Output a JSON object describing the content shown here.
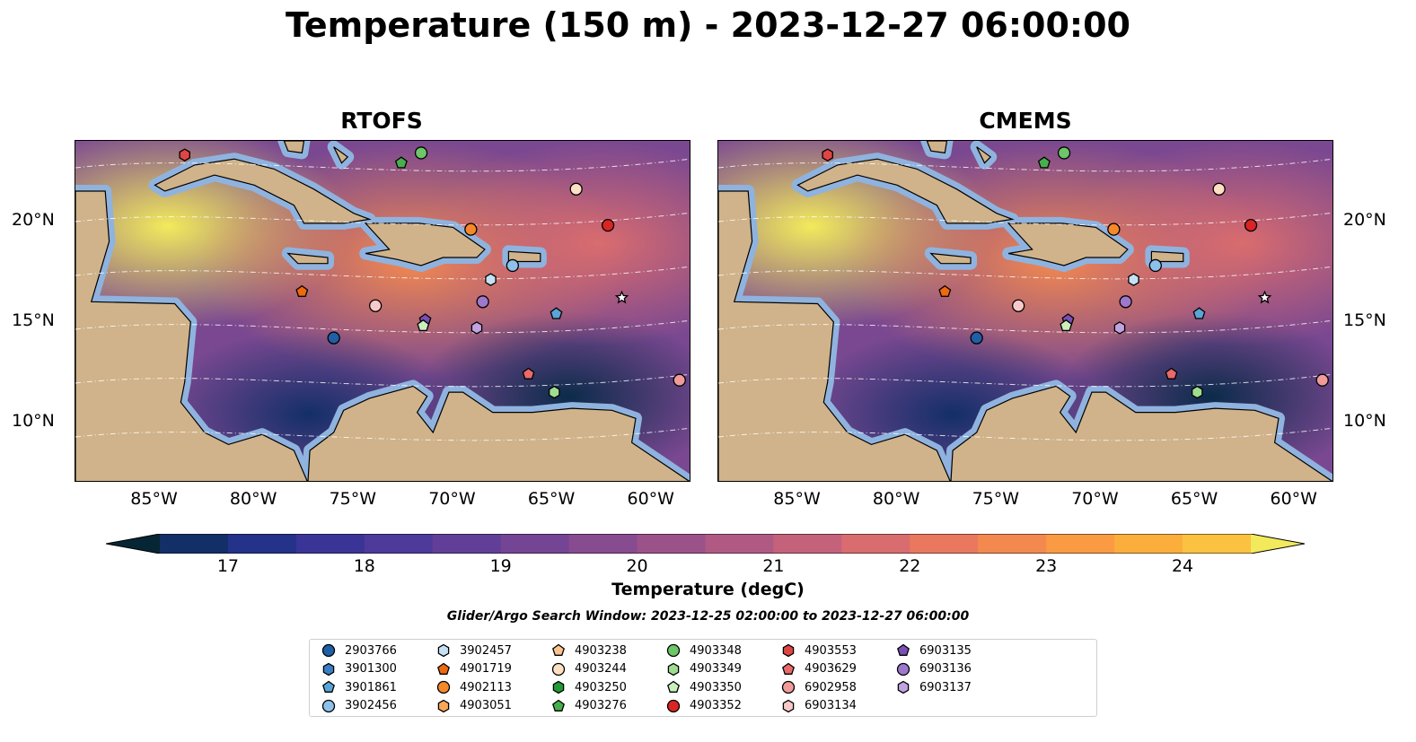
{
  "title": "Temperature (150 m) - 2023-12-27 06:00:00",
  "panels": [
    {
      "title": "RTOFS"
    },
    {
      "title": "CMEMS"
    }
  ],
  "axes": {
    "lon_ticks": [
      "85°W",
      "80°W",
      "75°W",
      "70°W",
      "65°W",
      "60°W"
    ],
    "lat_ticks": [
      "20°N",
      "15°N",
      "10°N"
    ],
    "lon_range": [
      -89,
      -58
    ],
    "lat_range": [
      7,
      24
    ]
  },
  "colorbar": {
    "label": "Temperature (degC)",
    "min": 16.5,
    "max": 24.5,
    "step": 0.5,
    "ticks": [
      "17",
      "18",
      "19",
      "20",
      "21",
      "22",
      "23",
      "24"
    ],
    "tick_values": [
      17,
      18,
      19,
      20,
      21,
      22,
      23,
      24
    ],
    "extend": "both",
    "colors": [
      "#062636",
      "#0b2b4a",
      "#132f68",
      "#24328a",
      "#3b3497",
      "#4e3a9a",
      "#613f99",
      "#744594",
      "#874b8f",
      "#9b5289",
      "#b05a83",
      "#c5627b",
      "#d96c6e",
      "#ea785f",
      "#f4894f",
      "#fa9b43",
      "#fcae3c",
      "#fbc241",
      "#f8d64d",
      "#f2ea5c"
    ]
  },
  "search_window": "Glider/Argo Search Window: 2023-12-25 02:00:00 to 2023-12-27 06:00:00",
  "legend": [
    {
      "id": "2903766",
      "marker": "circle",
      "color": "#1f5fa5"
    },
    {
      "id": "3901300",
      "marker": "hexagon",
      "color": "#3a7fc4"
    },
    {
      "id": "3901861",
      "marker": "pentagon",
      "color": "#5aa5d8"
    },
    {
      "id": "3902456",
      "marker": "circle",
      "color": "#8ec1ea"
    },
    {
      "id": "3902457",
      "marker": "hexagon",
      "color": "#c6e1f5"
    },
    {
      "id": "4901719",
      "marker": "pentagon",
      "color": "#ee6a0e"
    },
    {
      "id": "4902113",
      "marker": "circle",
      "color": "#f5892a"
    },
    {
      "id": "4903051",
      "marker": "hexagon",
      "color": "#f9a85a"
    },
    {
      "id": "4903238",
      "marker": "pentagon",
      "color": "#fbc48f"
    },
    {
      "id": "4903244",
      "marker": "circle",
      "color": "#fde0c4"
    },
    {
      "id": "4903250",
      "marker": "hexagon",
      "color": "#229a36"
    },
    {
      "id": "4903276",
      "marker": "pentagon",
      "color": "#47b04d"
    },
    {
      "id": "4903348",
      "marker": "circle",
      "color": "#6dc668"
    },
    {
      "id": "4903349",
      "marker": "hexagon",
      "color": "#9edd8f"
    },
    {
      "id": "4903350",
      "marker": "pentagon",
      "color": "#c9f0bd"
    },
    {
      "id": "4903352",
      "marker": "circle",
      "color": "#d92523"
    },
    {
      "id": "4903553",
      "marker": "hexagon",
      "color": "#e04545"
    },
    {
      "id": "4903629",
      "marker": "pentagon",
      "color": "#e86a6a"
    },
    {
      "id": "6902958",
      "marker": "circle",
      "color": "#f09a9a"
    },
    {
      "id": "6903134",
      "marker": "hexagon",
      "color": "#f8c9c9"
    },
    {
      "id": "6903135",
      "marker": "pentagon",
      "color": "#7b4fb5"
    },
    {
      "id": "6903136",
      "marker": "circle",
      "color": "#9d78cc"
    },
    {
      "id": "6903137",
      "marker": "hexagon",
      "color": "#c0a3e0"
    }
  ],
  "floats": [
    {
      "lon": -83.5,
      "lat": 23.3,
      "marker": "hexagon",
      "color": "#e04545"
    },
    {
      "lon": -71.6,
      "lat": 23.4,
      "marker": "circle",
      "color": "#6dc668"
    },
    {
      "lon": -72.6,
      "lat": 22.9,
      "marker": "pentagon",
      "color": "#47b04d"
    },
    {
      "lon": -63.8,
      "lat": 21.6,
      "marker": "circle",
      "color": "#fde0c4"
    },
    {
      "lon": -62.2,
      "lat": 19.8,
      "marker": "circle",
      "color": "#d92523"
    },
    {
      "lon": -69.1,
      "lat": 19.6,
      "marker": "circle",
      "color": "#f5892a"
    },
    {
      "lon": -67.0,
      "lat": 17.8,
      "marker": "circle",
      "color": "#8ec1ea"
    },
    {
      "lon": -68.1,
      "lat": 17.1,
      "marker": "hexagon",
      "color": "#c6e1f5"
    },
    {
      "lon": -77.6,
      "lat": 16.5,
      "marker": "pentagon",
      "color": "#ee6a0e"
    },
    {
      "lon": -68.5,
      "lat": 16.0,
      "marker": "circle",
      "color": "#9d78cc"
    },
    {
      "lon": -73.9,
      "lat": 15.8,
      "marker": "circle",
      "color": "#f8c9c9"
    },
    {
      "lon": -64.8,
      "lat": 15.4,
      "marker": "pentagon",
      "color": "#5aa5d8"
    },
    {
      "lon": -71.4,
      "lat": 15.1,
      "marker": "pentagon",
      "color": "#7b4fb5"
    },
    {
      "lon": -71.5,
      "lat": 14.8,
      "marker": "pentagon",
      "color": "#c9f0bd"
    },
    {
      "lon": -68.8,
      "lat": 14.7,
      "marker": "hexagon",
      "color": "#c0a3e0"
    },
    {
      "lon": -76.0,
      "lat": 14.2,
      "marker": "circle",
      "color": "#1f5fa5"
    },
    {
      "lon": -66.2,
      "lat": 12.4,
      "marker": "pentagon",
      "color": "#e86a6a"
    },
    {
      "lon": -58.6,
      "lat": 12.1,
      "marker": "circle",
      "color": "#f09a9a"
    },
    {
      "lon": -64.9,
      "lat": 11.5,
      "marker": "hexagon",
      "color": "#9edd8f"
    },
    {
      "lon": -61.5,
      "lat": 16.2,
      "marker": "star",
      "color": "#ffffff"
    }
  ]
}
